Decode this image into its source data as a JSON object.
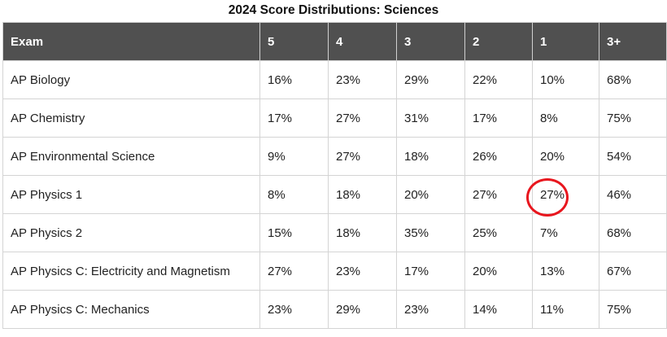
{
  "title": "2024 Score Distributions: Sciences",
  "headers": [
    "Exam",
    "5",
    "4",
    "3",
    "2",
    "1",
    "3+"
  ],
  "rows": [
    [
      "AP Biology",
      "16%",
      "23%",
      "29%",
      "22%",
      "10%",
      "68%"
    ],
    [
      "AP Chemistry",
      "17%",
      "27%",
      "31%",
      "17%",
      "8%",
      "75%"
    ],
    [
      "AP Environmental Science",
      "9%",
      "27%",
      "18%",
      "26%",
      "20%",
      "54%"
    ],
    [
      "AP Physics 1",
      "8%",
      "18%",
      "20%",
      "27%",
      "27%",
      "46%"
    ],
    [
      "AP Physics 2",
      "15%",
      "18%",
      "35%",
      "25%",
      "7%",
      "68%"
    ],
    [
      "AP Physics C: Electricity and Magnetism",
      "27%",
      "23%",
      "17%",
      "20%",
      "13%",
      "67%"
    ],
    [
      "AP Physics C: Mechanics",
      "23%",
      "29%",
      "23%",
      "14%",
      "11%",
      "75%"
    ]
  ],
  "annotation": {
    "type": "circle",
    "color": "#e8161e",
    "row": 3,
    "column": 5
  }
}
